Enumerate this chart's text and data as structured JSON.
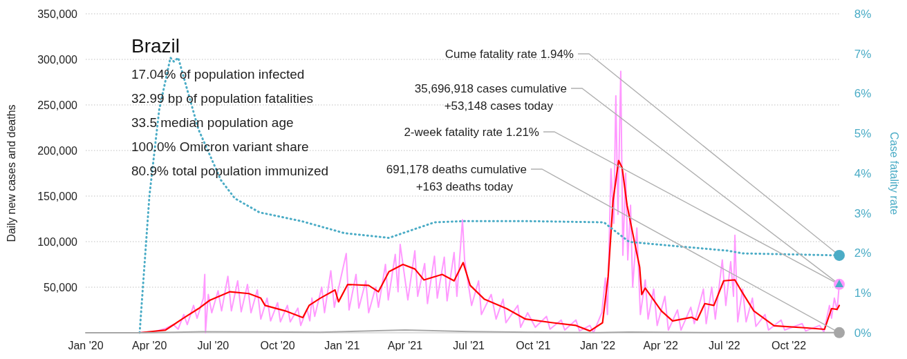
{
  "chart_data": {
    "type": "line",
    "title": "Brazil",
    "ylabel": "Daily new cases and deaths",
    "y2label": "Case fatality rate",
    "annotations": [
      "17.04% of population infected",
      "32.99 bp of population fatalities",
      "33.5 median population age",
      "100.0% Omicron variant share",
      "80.9% total population immunized",
      "Cume fatality rate 1.94%",
      "35,696,918 cases cumulative\n+53,148 cases today",
      "2-week fatality rate 1.21%",
      "691,178 deaths cumulative\n+163 deaths today"
    ],
    "xlim": [
      "2020-01-01",
      "2022-12-12"
    ],
    "xticks": [
      {
        "value": "2020-01-01",
        "label": "Jan '20"
      },
      {
        "value": "2020-04-01",
        "label": "Apr '20"
      },
      {
        "value": "2020-07-01",
        "label": "Jul '20"
      },
      {
        "value": "2020-10-01",
        "label": "Oct '20"
      },
      {
        "value": "2021-01-01",
        "label": "Jan '21"
      },
      {
        "value": "2021-04-01",
        "label": "Apr '21"
      },
      {
        "value": "2021-07-01",
        "label": "Jul '21"
      },
      {
        "value": "2021-10-01",
        "label": "Oct '21"
      },
      {
        "value": "2022-01-01",
        "label": "Jan '22"
      },
      {
        "value": "2022-04-01",
        "label": "Apr '22"
      },
      {
        "value": "2022-07-01",
        "label": "Jul '22"
      },
      {
        "value": "2022-10-01",
        "label": "Oct '22"
      }
    ],
    "ylim": [
      0,
      350000
    ],
    "yticks": [
      {
        "value": 0,
        "label": null
      },
      {
        "value": 50000,
        "label": "50,000"
      },
      {
        "value": 100000,
        "label": "100,000"
      },
      {
        "value": 150000,
        "label": "150,000"
      },
      {
        "value": 200000,
        "label": "200,000"
      },
      {
        "value": 250000,
        "label": "250,000"
      },
      {
        "value": 300000,
        "label": "300,000"
      },
      {
        "value": 350000,
        "label": "350,000"
      }
    ],
    "y2lim": [
      0,
      8
    ],
    "y2ticks": [
      {
        "value": 0,
        "label": "0%"
      },
      {
        "value": 1,
        "label": "1%"
      },
      {
        "value": 2,
        "label": "2%"
      },
      {
        "value": 3,
        "label": "3%"
      },
      {
        "value": 4,
        "label": "4%"
      },
      {
        "value": 5,
        "label": "5%"
      },
      {
        "value": 6,
        "label": "6%"
      },
      {
        "value": 7,
        "label": "7%"
      },
      {
        "value": 8,
        "label": "8%"
      }
    ],
    "grid": "y",
    "series": [
      {
        "color": "#ff99ff",
        "x": [
          "2020-03-15",
          "2020-04-10",
          "2020-04-25",
          "2020-05-05",
          "2020-05-12",
          "2020-05-20",
          "2020-05-25",
          "2020-06-03",
          "2020-06-08",
          "2020-06-17",
          "2020-06-19",
          "2020-06-20",
          "2020-06-24",
          "2020-06-29",
          "2020-07-08",
          "2020-07-13",
          "2020-07-22",
          "2020-07-27",
          "2020-08-05",
          "2020-08-10",
          "2020-08-19",
          "2020-08-24",
          "2020-09-02",
          "2020-09-07",
          "2020-09-16",
          "2020-09-21",
          "2020-10-01",
          "2020-10-05",
          "2020-10-15",
          "2020-10-19",
          "2020-10-30",
          "2020-11-03",
          "2020-11-12",
          "2020-11-16",
          "2020-11-19",
          "2020-11-23",
          "2020-12-03",
          "2020-12-07",
          "2020-12-16",
          "2020-12-21",
          "2021-01-07",
          "2021-01-11",
          "2021-01-21",
          "2021-01-25",
          "2021-02-04",
          "2021-02-08",
          "2021-02-18",
          "2021-02-22",
          "2021-03-04",
          "2021-03-08",
          "2021-03-18",
          "2021-03-22",
          "2021-03-25",
          "2021-04-05",
          "2021-04-15",
          "2021-04-19",
          "2021-04-29",
          "2021-05-03",
          "2021-05-13",
          "2021-05-17",
          "2021-05-27",
          "2021-05-31",
          "2021-06-10",
          "2021-06-14",
          "2021-06-22",
          "2021-06-25",
          "2021-07-05",
          "2021-07-15",
          "2021-07-19",
          "2021-08-02",
          "2021-08-09",
          "2021-08-19",
          "2021-08-23",
          "2021-09-09",
          "2021-09-13",
          "2021-09-23",
          "2021-10-04",
          "2021-10-20",
          "2021-10-25",
          "2021-11-10",
          "2021-11-15",
          "2021-12-01",
          "2021-12-06",
          "2021-12-21",
          "2021-12-26",
          "2022-01-07",
          "2022-01-12",
          "2022-01-15",
          "2022-01-20",
          "2022-01-24",
          "2022-01-27",
          "2022-01-30",
          "2022-02-03",
          "2022-02-06",
          "2022-02-10",
          "2022-02-13",
          "2022-02-17",
          "2022-02-20",
          "2022-02-26",
          "2022-03-03",
          "2022-03-10",
          "2022-03-14",
          "2022-03-22",
          "2022-03-27",
          "2022-04-07",
          "2022-04-12",
          "2022-04-25",
          "2022-04-30",
          "2022-05-14",
          "2022-05-19",
          "2022-06-01",
          "2022-06-05",
          "2022-06-13",
          "2022-06-18",
          "2022-06-28",
          "2022-07-03",
          "2022-07-10",
          "2022-07-14",
          "2022-07-16",
          "2022-07-20",
          "2022-07-27",
          "2022-08-01",
          "2022-08-10",
          "2022-08-15",
          "2022-08-28",
          "2022-09-02",
          "2022-09-20",
          "2022-09-25",
          "2022-10-20",
          "2022-10-25",
          "2022-11-14",
          "2022-11-20",
          "2022-11-28",
          "2022-12-01",
          "2022-12-05",
          "2022-12-09",
          "2022-12-12"
        ],
        "values": [
          0,
          1500,
          5000,
          9000,
          4000,
          20000,
          9000,
          30000,
          16000,
          38000,
          64000,
          0,
          42000,
          22000,
          46000,
          24000,
          62000,
          24000,
          57000,
          23000,
          53000,
          22000,
          47000,
          15000,
          38000,
          13000,
          33000,
          12000,
          30000,
          12000,
          27000,
          8000,
          26000,
          13000,
          38000,
          18000,
          50000,
          22000,
          68000,
          28000,
          87000,
          25000,
          64000,
          27000,
          57000,
          22000,
          50000,
          28000,
          75000,
          36000,
          86000,
          45000,
          97000,
          36000,
          90000,
          40000,
          76000,
          32000,
          84000,
          38000,
          83000,
          35000,
          88000,
          40000,
          124000,
          80000,
          30000,
          57000,
          20000,
          42000,
          15000,
          37000,
          11000,
          30000,
          6000,
          22000,
          6000,
          18000,
          4000,
          14000,
          3000,
          14000,
          2000,
          8000,
          0,
          22000,
          60000,
          20000,
          180000,
          120000,
          260000,
          130000,
          287000,
          85000,
          175000,
          80000,
          140000,
          50000,
          115000,
          20000,
          58000,
          15000,
          48000,
          8000,
          40000,
          3000,
          25000,
          3000,
          28000,
          10000,
          48000,
          10000,
          50000,
          15000,
          80000,
          30000,
          78000,
          40000,
          107000,
          12000,
          48000,
          12000,
          38000,
          7000,
          20000,
          3000,
          14000,
          3000,
          10000,
          2000,
          8000,
          1000,
          30000,
          16000,
          38000,
          25000,
          53148
        ]
      },
      {
        "color": "#ff0000",
        "x": [
          "2020-03-18",
          "2020-04-24",
          "2020-05-21",
          "2020-06-10",
          "2020-06-26",
          "2020-07-25",
          "2020-08-21",
          "2020-09-07",
          "2020-09-13",
          "2020-10-12",
          "2020-11-06",
          "2020-11-15",
          "2020-12-01",
          "2020-12-22",
          "2020-12-27",
          "2021-01-09",
          "2021-02-08",
          "2021-02-22",
          "2021-03-09",
          "2021-03-29",
          "2021-04-15",
          "2021-04-28",
          "2021-05-24",
          "2021-06-10",
          "2021-06-23",
          "2021-07-03",
          "2021-07-23",
          "2021-08-24",
          "2021-09-20",
          "2021-10-29",
          "2021-12-01",
          "2021-12-21",
          "2022-01-08",
          "2022-01-16",
          "2022-01-23",
          "2022-01-31",
          "2022-02-05",
          "2022-02-12",
          "2022-02-22",
          "2022-03-02",
          "2022-03-05",
          "2022-03-10",
          "2022-04-02",
          "2022-04-18",
          "2022-05-15",
          "2022-05-23",
          "2022-06-03",
          "2022-06-16",
          "2022-06-30",
          "2022-07-16",
          "2022-07-26",
          "2022-08-12",
          "2022-09-10",
          "2022-10-27",
          "2022-11-21",
          "2022-12-01",
          "2022-12-09",
          "2022-12-12"
        ],
        "values": [
          0,
          3000,
          16700,
          26500,
          35600,
          45000,
          43000,
          38000,
          30000,
          24000,
          16700,
          30000,
          38000,
          47000,
          34000,
          53000,
          52000,
          45000,
          67000,
          75000,
          70000,
          58000,
          64000,
          57000,
          77000,
          52000,
          37000,
          26500,
          15000,
          11000,
          8000,
          2000,
          11000,
          62000,
          145000,
          189000,
          181000,
          140000,
          102000,
          72000,
          42000,
          49000,
          24000,
          13000,
          17000,
          14000,
          32000,
          30000,
          57000,
          58000,
          45000,
          24000,
          7600,
          5300,
          3800,
          26500,
          25700,
          30000
        ]
      },
      {
        "axis": "y2",
        "line_style": "dotted",
        "color": "#4bacc6",
        "x": [
          "2020-03-18",
          "2020-04-01",
          "2020-04-15",
          "2020-05-01",
          "2020-05-06",
          "2020-05-12",
          "2020-06-10",
          "2020-07-12",
          "2020-08-01",
          "2020-09-05",
          "2020-11-04",
          "2021-01-04",
          "2021-03-09",
          "2021-05-13",
          "2021-06-26",
          "2021-09-23",
          "2022-01-10",
          "2022-01-20",
          "2022-02-15",
          "2022-04-12",
          "2022-07-05",
          "2022-07-28",
          "2022-12-12"
        ],
        "values": [
          0,
          3.44,
          5.6,
          6.9,
          6.8,
          6.9,
          5.1,
          3.83,
          3.37,
          3.02,
          2.8,
          2.5,
          2.38,
          2.77,
          2.8,
          2.8,
          2.77,
          2.63,
          2.28,
          2.19,
          2.06,
          1.99,
          1.94
        ]
      },
      {
        "color": "#a6a6a6",
        "x": [
          "2020-01-01",
          "2020-03-20",
          "2020-06-15",
          "2020-09-01",
          "2020-12-01",
          "2021-04-01",
          "2021-07-01",
          "2021-10-01",
          "2022-01-01",
          "2022-02-15",
          "2022-06-01",
          "2022-12-12"
        ],
        "values": [
          0,
          0,
          1100,
          900,
          600,
          3000,
          1400,
          500,
          200,
          800,
          200,
          163
        ]
      },
      {
        "type": "scatter",
        "axis": "y2",
        "marker": "circle",
        "color": "#4bacc6",
        "x": [
          "2022-12-12"
        ],
        "values": [
          1.94
        ]
      },
      {
        "type": "scatter",
        "marker": "circle",
        "color": "#ff99ff",
        "x": [
          "2022-12-12"
        ],
        "values": [
          53148
        ]
      },
      {
        "type": "scatter",
        "axis": "y2",
        "marker": "triangle",
        "color": "#4bacc6",
        "x": [
          "2022-12-12"
        ],
        "values": [
          1.21
        ]
      },
      {
        "type": "scatter",
        "marker": "circle",
        "color": "#a6a6a6",
        "x": [
          "2022-12-12"
        ],
        "values": [
          163
        ]
      }
    ]
  }
}
